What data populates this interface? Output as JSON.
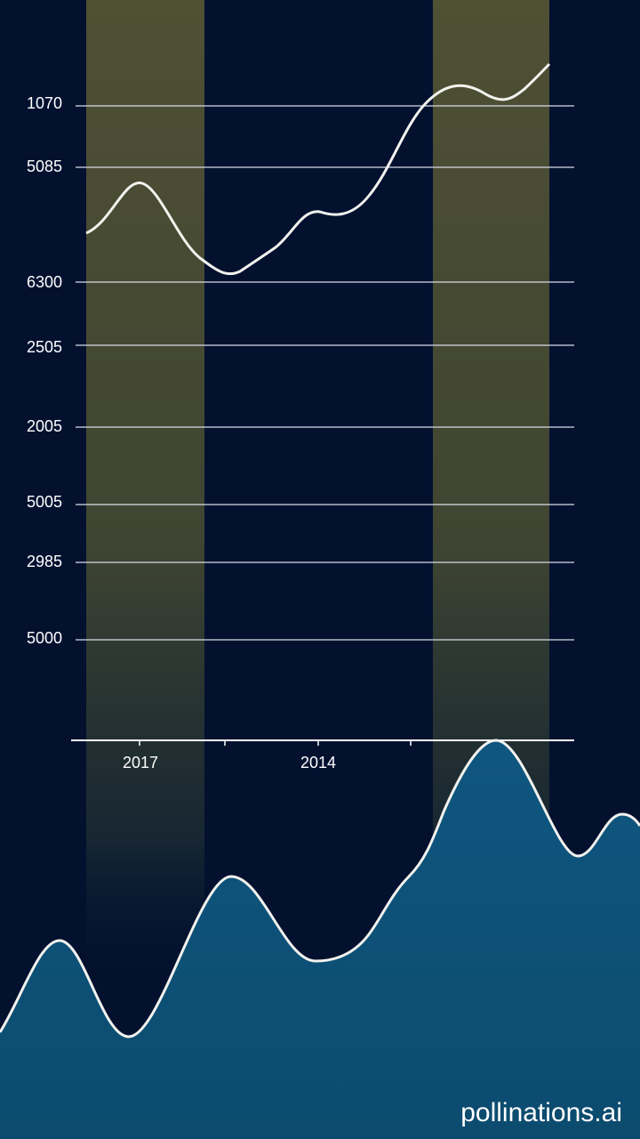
{
  "y_labels": [
    "1070",
    "5085",
    "6300",
    "2505",
    "2005",
    "5005",
    "2985",
    "5000"
  ],
  "x_labels": [
    "2017",
    "2014"
  ],
  "watermark": "pollinations.ai"
}
